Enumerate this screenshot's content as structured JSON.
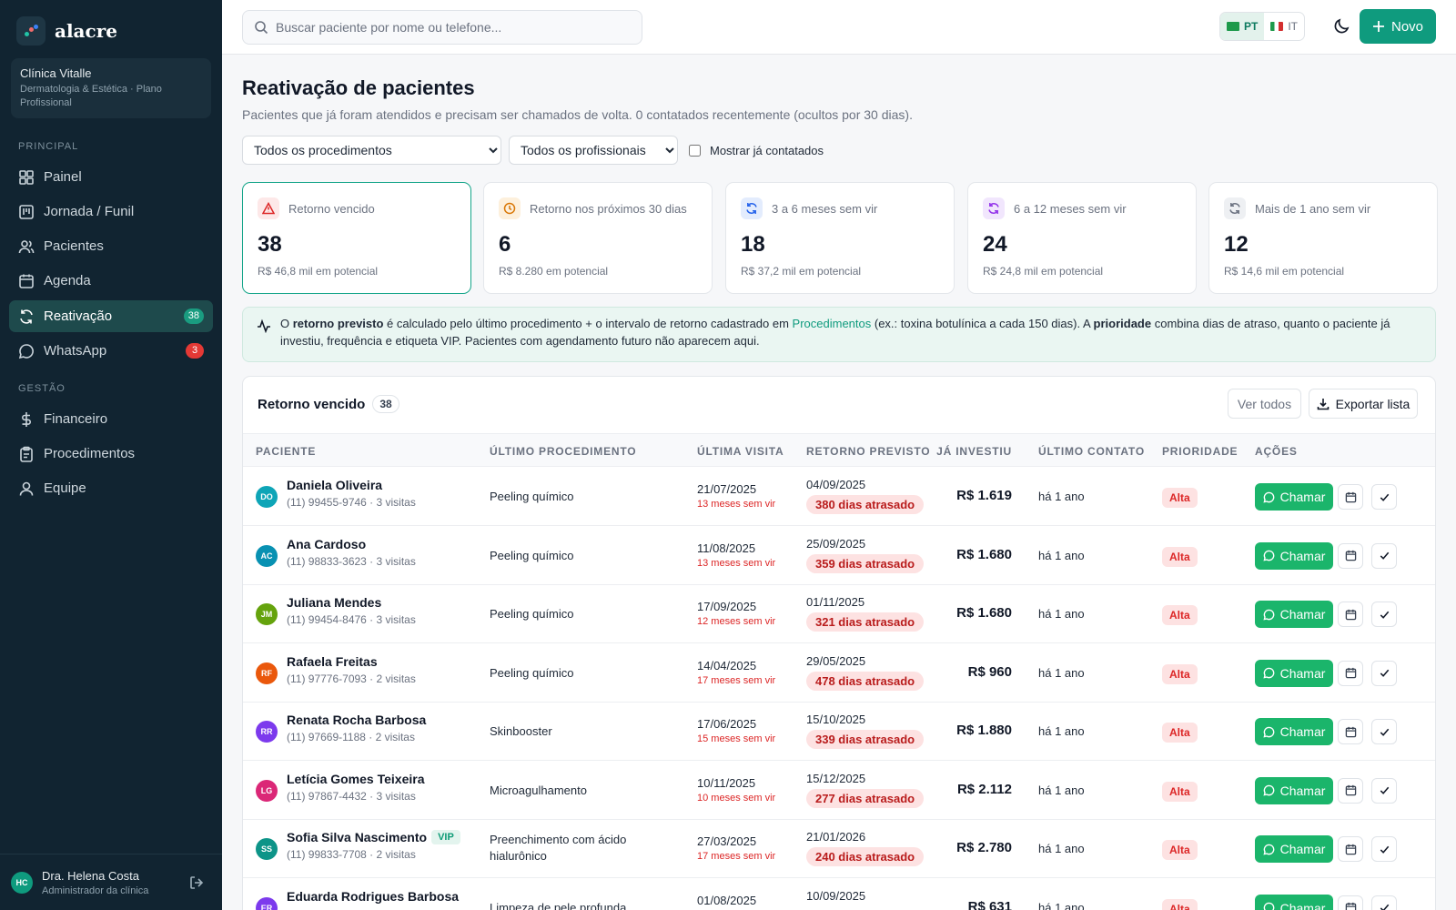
{
  "brand": {
    "name": "alacre"
  },
  "clinic": {
    "name": "Clínica Vitalle",
    "subtitle": "Dermatologia & Estética · Plano Profissional"
  },
  "sidebar": {
    "section_principal": "PRINCIPAL",
    "section_gestao": "GESTÃO",
    "items": [
      {
        "label": "Painel",
        "icon": "dashboard-icon"
      },
      {
        "label": "Jornada / Funil",
        "icon": "funnel-board-icon"
      },
      {
        "label": "Pacientes",
        "icon": "users-icon"
      },
      {
        "label": "Agenda",
        "icon": "calendar-icon"
      },
      {
        "label": "Reativação",
        "icon": "refresh-icon",
        "badge": "38",
        "active": true
      },
      {
        "label": "WhatsApp",
        "icon": "chat-icon",
        "badge": "3"
      },
      {
        "label": "Financeiro",
        "icon": "dollar-icon"
      },
      {
        "label": "Procedimentos",
        "icon": "clipboard-icon"
      },
      {
        "label": "Equipe",
        "icon": "user-icon"
      }
    ]
  },
  "user": {
    "initials": "HC",
    "name": "Dra. Helena Costa",
    "role": "Administrador da clínica"
  },
  "topbar": {
    "search_placeholder": "Buscar paciente por nome ou telefone...",
    "lang_pt": "PT",
    "lang_it": "IT",
    "new_label": "Novo"
  },
  "page": {
    "title": "Reativação de pacientes",
    "subtitle": "Pacientes que já foram atendidos e precisam ser chamados de volta. 0 contatados recentemente (ocultos por 30 dias).",
    "filter_procedure": "Todos os procedimentos",
    "filter_professional": "Todos os profissionais",
    "show_contacted": "Mostrar já contatados"
  },
  "cards": [
    {
      "label": "Retorno vencido",
      "value": "38",
      "sub": "R$ 46,8 mil em potencial",
      "color": "#dc2626",
      "bg": "#fde8e8",
      "icon": "alert-triangle-icon",
      "selected": true
    },
    {
      "label": "Retorno nos próximos 30 dias",
      "value": "6",
      "sub": "R$ 8.280 em potencial",
      "color": "#d97706",
      "bg": "#fdf0dc",
      "icon": "clock-icon"
    },
    {
      "label": "3 a 6 meses sem vir",
      "value": "18",
      "sub": "R$ 37,2 mil em potencial",
      "color": "#2563eb",
      "bg": "#e3ecfd",
      "icon": "refresh-icon"
    },
    {
      "label": "6 a 12 meses sem vir",
      "value": "24",
      "sub": "R$ 24,8 mil em potencial",
      "color": "#9333ea",
      "bg": "#f1e6fd",
      "icon": "refresh-icon"
    },
    {
      "label": "Mais de 1 ano sem vir",
      "value": "12",
      "sub": "R$ 14,6 mil em potencial",
      "color": "#6b7280",
      "bg": "#eef0f3",
      "icon": "refresh-icon"
    }
  ],
  "info": {
    "t1": "O ",
    "b1": "retorno previsto",
    "t2": " é calculado pelo último procedimento + o intervalo de retorno cadastrado em ",
    "link": "Procedimentos",
    "t3": " (ex.: toxina botulínica a cada 150 dias). A ",
    "b2": "prioridade",
    "t4": " combina dias de atraso, quanto o paciente já investiu, frequência e etiqueta VIP. Pacientes com agendamento futuro não aparecem aqui."
  },
  "table": {
    "title": "Retorno vencido",
    "count": "38",
    "see_all": "Ver todos",
    "export": "Exportar lista",
    "columns": [
      "PACIENTE",
      "ÚLTIMO PROCEDIMENTO",
      "ÚLTIMA VISITA",
      "RETORNO PREVISTO",
      "JÁ INVESTIU",
      "ÚLTIMO CONTATO",
      "PRIORIDADE",
      "AÇÕES"
    ],
    "action_call": "Chamar",
    "rows": [
      {
        "initials": "DO",
        "color": "#0ea5b7",
        "name": "Daniela Oliveira",
        "sub": "(11) 99455-9746 · 3 visitas",
        "proc": "Peeling químico",
        "last": "21/07/2025",
        "since": "13 meses sem vir",
        "ret": "04/09/2025",
        "late": "380 dias atrasado",
        "inv": "R$ 1.619",
        "contact": "há 1 ano",
        "prio": "Alta"
      },
      {
        "initials": "AC",
        "color": "#0891b2",
        "name": "Ana Cardoso",
        "sub": "(11) 98833-3623 · 3 visitas",
        "proc": "Peeling químico",
        "last": "11/08/2025",
        "since": "13 meses sem vir",
        "ret": "25/09/2025",
        "late": "359 dias atrasado",
        "inv": "R$ 1.680",
        "contact": "há 1 ano",
        "prio": "Alta"
      },
      {
        "initials": "JM",
        "color": "#65a30d",
        "name": "Juliana Mendes",
        "sub": "(11) 99454-8476 · 3 visitas",
        "proc": "Peeling químico",
        "last": "17/09/2025",
        "since": "12 meses sem vir",
        "ret": "01/11/2025",
        "late": "321 dias atrasado",
        "inv": "R$ 1.680",
        "contact": "há 1 ano",
        "prio": "Alta"
      },
      {
        "initials": "RF",
        "color": "#ea580c",
        "name": "Rafaela Freitas",
        "sub": "(11) 97776-7093 · 2 visitas",
        "proc": "Peeling químico",
        "last": "14/04/2025",
        "since": "17 meses sem vir",
        "ret": "29/05/2025",
        "late": "478 dias atrasado",
        "inv": "R$ 960",
        "contact": "há 1 ano",
        "prio": "Alta"
      },
      {
        "initials": "RR",
        "color": "#7c3aed",
        "name": "Renata Rocha Barbosa",
        "sub": "(11) 97669-1188 · 2 visitas",
        "proc": "Skinbooster",
        "last": "17/06/2025",
        "since": "15 meses sem vir",
        "ret": "15/10/2025",
        "late": "339 dias atrasado",
        "inv": "R$ 1.880",
        "contact": "há 1 ano",
        "prio": "Alta"
      },
      {
        "initials": "LG",
        "color": "#db2777",
        "name": "Letícia Gomes Teixeira",
        "sub": "(11) 97867-4432 · 3 visitas",
        "proc": "Microagulhamento",
        "last": "10/11/2025",
        "since": "10 meses sem vir",
        "ret": "15/12/2025",
        "late": "277 dias atrasado",
        "inv": "R$ 2.112",
        "contact": "há 1 ano",
        "prio": "Alta"
      },
      {
        "initials": "SS",
        "color": "#0d9488",
        "name": "Sofia Silva Nascimento",
        "vip": "VIP",
        "sub": "(11) 99833-7708 · 2 visitas",
        "proc": "Preenchimento com ácido hialurônico",
        "last": "27/03/2025",
        "since": "17 meses sem vir",
        "ret": "21/01/2026",
        "late": "240 dias atrasado",
        "inv": "R$ 2.780",
        "contact": "há 1 ano",
        "prio": "Alta"
      },
      {
        "initials": "ER",
        "color": "#7c3aed",
        "name": "Eduarda Rodrigues Barbosa",
        "sub": "",
        "proc": "Limpeza de pele profunda",
        "last": "01/08/2025",
        "since": "",
        "ret": "10/09/2025",
        "late": "",
        "inv": "R$ 631",
        "contact": "há 1 ano",
        "prio": "Alta"
      }
    ]
  }
}
